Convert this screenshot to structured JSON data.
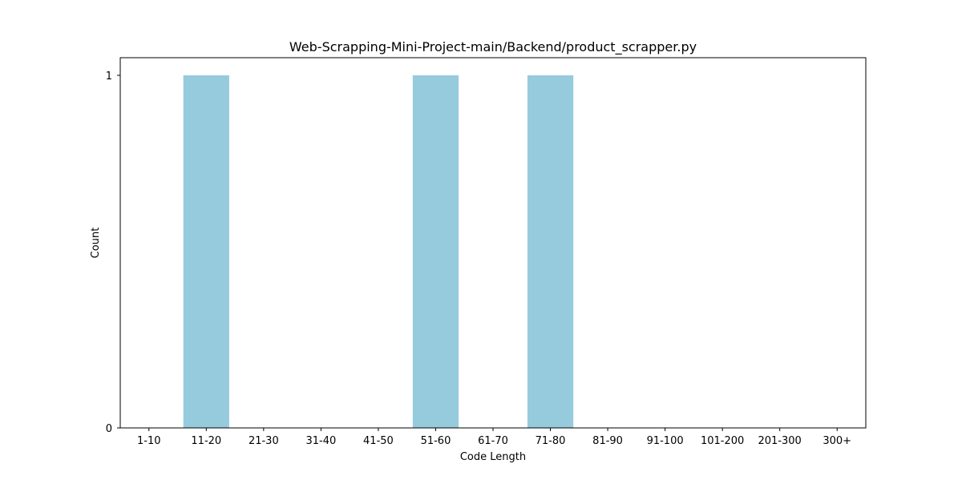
{
  "chart_data": {
    "type": "bar",
    "title": "Web-Scrapping-Mini-Project-main/Backend/product_scrapper.py",
    "xlabel": "Code Length",
    "ylabel": "Count",
    "categories": [
      "1-10",
      "11-20",
      "21-30",
      "31-40",
      "41-50",
      "51-60",
      "61-70",
      "71-80",
      "81-90",
      "91-100",
      "101-200",
      "201-300",
      "300+"
    ],
    "values": [
      0,
      1,
      0,
      0,
      0,
      1,
      0,
      1,
      0,
      0,
      0,
      0,
      0
    ],
    "yticks": [
      0,
      1
    ],
    "ylim": [
      0,
      1.05
    ],
    "grid": false,
    "bar_color": "#96cadd"
  }
}
